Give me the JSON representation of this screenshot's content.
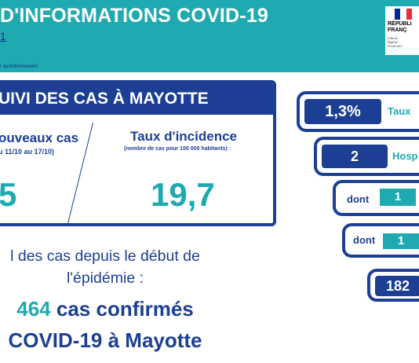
{
  "header": {
    "title": "D'INFORMATIONS COVID-19",
    "subtitle": "1",
    "update_note": "r quotidiennement",
    "logo": {
      "text": "RÉPUBLI\nFRANÇ",
      "motto": "Liberté\nÉgalité\nFraternité",
      "flag_colors": [
        "#002395",
        "#ffffff",
        "#ed2939"
      ]
    }
  },
  "suivi": {
    "title": "UIVI DES CAS À MAYOTTE",
    "left": {
      "title": "ouveaux cas",
      "note": "u 11/10 au 17/10)",
      "value": "5"
    },
    "right": {
      "title": "Taux d'incidence",
      "note": "(nombre de cas pour 100 000 habitants) :",
      "value": "19,7"
    }
  },
  "summary": {
    "line1": "l des cas depuis le début de",
    "line2": "l'épidémie :",
    "cases_number": "464",
    "cases_text": "cas confirmés",
    "covid_line": "COVID-19 à Mayotte"
  },
  "indicators": {
    "taux": {
      "value": "1,3%",
      "label": "Taux"
    },
    "hosp": {
      "value": "2",
      "label": "Hosp"
    },
    "dont1": {
      "prefix": "dont",
      "value": "1"
    },
    "dont2": {
      "prefix": "dont",
      "value": "1"
    },
    "count": {
      "value": "182"
    }
  },
  "colors": {
    "teal": "#1eaab0",
    "navy": "#1c3f94"
  }
}
